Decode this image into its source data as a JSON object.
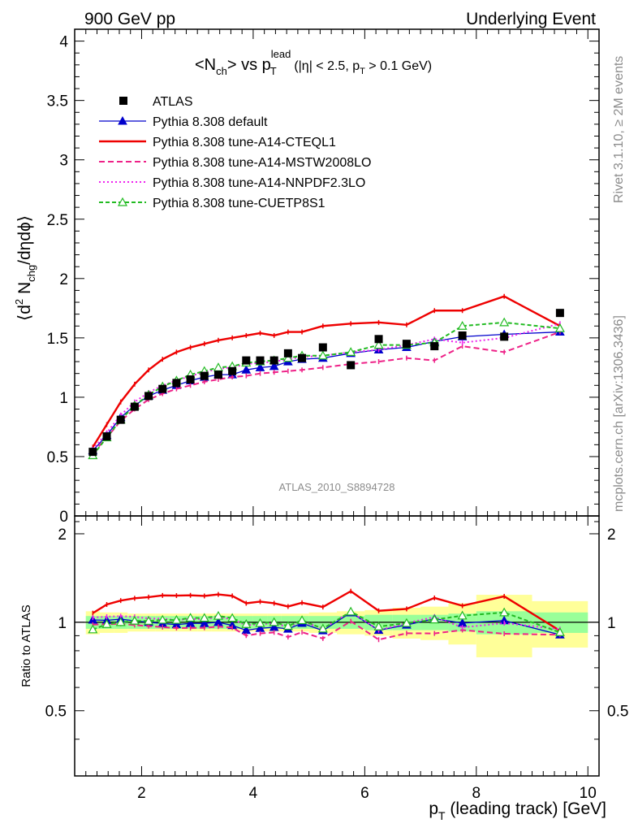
{
  "header": {
    "left": "900 GeV pp",
    "right": "Underlying Event"
  },
  "side_labels": {
    "top": "Rivet 3.1.10, ≥ 2M events",
    "bottom": "mcplots.cern.ch [arXiv:1306.3436]"
  },
  "analysis_id": "ATLAS_2010_S8894728",
  "chart_data": {
    "type": "scatter",
    "title": "<N_ch> vs p_T^lead (|η| < 2.5, p_T > 0.1 GeV)",
    "title_parts": {
      "a": "<N",
      "a_sub": "ch",
      "b": "> vs p",
      "b_sub": "T",
      "b_sup": "lead",
      "c": "(|η| < 2.5, p",
      "c_sub": "T",
      "d": " > 0.1 GeV)"
    },
    "xlabel": "p_T (leading track) [GeV]",
    "xlabel_parts": {
      "a": "p",
      "sub": "T",
      "b": " (leading track) [GeV]"
    },
    "ylabel": "⟨d² N_chg/dηdϕ⟩",
    "ylabel_parts": {
      "a": "⟨d",
      "sup": "2",
      "b": " N",
      "sub": "chg",
      "c": "/dηdϕ⟩"
    },
    "ratio_ylabel": "Ratio to ATLAS",
    "xlim": [
      0.8,
      10.2
    ],
    "ylim": [
      0,
      4.1
    ],
    "ratio_ylim": [
      0.3,
      2.3
    ],
    "x_ticks": [
      2,
      4,
      6,
      8,
      10
    ],
    "x_tick_labels": [
      "2",
      "4",
      "6",
      "8",
      "10"
    ],
    "y_ticks": [
      0,
      0.5,
      1,
      1.5,
      2,
      2.5,
      3,
      3.5,
      4
    ],
    "y_tick_labels": [
      "0",
      "0.5",
      "1",
      "1.5",
      "2",
      "2.5",
      "3",
      "3.5",
      "4"
    ],
    "ratio_y_ticks": [
      0.5,
      1,
      2
    ],
    "ratio_y_tick_labels": [
      "0.5",
      "1",
      "2"
    ],
    "legend_position": "top-left",
    "x": [
      1.125,
      1.375,
      1.625,
      1.875,
      2.125,
      2.375,
      2.625,
      2.875,
      3.125,
      3.375,
      3.625,
      3.875,
      4.125,
      4.375,
      4.625,
      4.875,
      5.25,
      5.75,
      6.25,
      6.75,
      7.25,
      7.75,
      8.5,
      9.5
    ],
    "x_bin_edges": [
      1.0,
      1.25,
      1.5,
      1.75,
      2.0,
      2.25,
      2.5,
      2.75,
      3.0,
      3.25,
      3.5,
      3.75,
      4.0,
      4.25,
      4.5,
      4.75,
      5.0,
      5.5,
      6.0,
      6.5,
      7.0,
      7.5,
      8.0,
      9.0,
      10.0
    ],
    "band_inner": [
      0.05,
      0.05,
      0.05,
      0.05,
      0.05,
      0.05,
      0.05,
      0.05,
      0.05,
      0.05,
      0.05,
      0.05,
      0.05,
      0.05,
      0.05,
      0.05,
      0.05,
      0.05,
      0.06,
      0.06,
      0.06,
      0.07,
      0.09,
      0.08
    ],
    "band_outer": [
      0.09,
      0.08,
      0.08,
      0.07,
      0.07,
      0.07,
      0.07,
      0.07,
      0.07,
      0.07,
      0.07,
      0.07,
      0.07,
      0.07,
      0.07,
      0.07,
      0.08,
      0.09,
      0.1,
      0.12,
      0.13,
      0.16,
      0.24,
      0.18
    ],
    "data": {
      "name": "ATLAS",
      "color": "#000000",
      "values": [
        0.54,
        0.67,
        0.81,
        0.92,
        1.01,
        1.07,
        1.12,
        1.15,
        1.18,
        1.19,
        1.22,
        1.31,
        1.31,
        1.31,
        1.37,
        1.33,
        1.42,
        1.27,
        1.49,
        1.45,
        1.43,
        1.52,
        1.51,
        1.71
      ]
    },
    "series": [
      {
        "name": "Pythia 8.308 default",
        "color": "#0000cc",
        "dash": "",
        "marker": "triangle-filled",
        "values": [
          0.55,
          0.68,
          0.83,
          0.93,
          1.01,
          1.06,
          1.1,
          1.14,
          1.17,
          1.19,
          1.19,
          1.23,
          1.25,
          1.26,
          1.3,
          1.32,
          1.33,
          1.37,
          1.4,
          1.42,
          1.47,
          1.51,
          1.53,
          1.55
        ]
      },
      {
        "name": "Pythia 8.308 tune-A14-CTEQL1",
        "color": "#ee0000",
        "dash": "",
        "marker": "none",
        "values": [
          0.58,
          0.77,
          0.96,
          1.11,
          1.23,
          1.32,
          1.38,
          1.42,
          1.45,
          1.48,
          1.5,
          1.52,
          1.54,
          1.52,
          1.55,
          1.55,
          1.6,
          1.62,
          1.63,
          1.61,
          1.73,
          1.73,
          1.85,
          1.6
        ]
      },
      {
        "name": "Pythia 8.308 tune-A14-MSTW2008LO",
        "color": "#ee2288",
        "dash": "7,4",
        "marker": "none",
        "values": [
          0.53,
          0.66,
          0.8,
          0.9,
          0.98,
          1.03,
          1.07,
          1.1,
          1.13,
          1.15,
          1.17,
          1.18,
          1.2,
          1.21,
          1.22,
          1.23,
          1.25,
          1.28,
          1.3,
          1.33,
          1.31,
          1.43,
          1.38,
          1.55
        ]
      },
      {
        "name": "Pythia 8.308 tune-A14-NNPDF2.3LO",
        "color": "#ee22ee",
        "dash": "2,3",
        "marker": "none",
        "values": [
          0.56,
          0.7,
          0.85,
          0.96,
          1.04,
          1.1,
          1.14,
          1.18,
          1.21,
          1.24,
          1.25,
          1.28,
          1.29,
          1.3,
          1.32,
          1.34,
          1.35,
          1.38,
          1.4,
          1.44,
          1.49,
          1.46,
          1.5,
          1.62
        ]
      },
      {
        "name": "Pythia 8.308 tune-CUETP8S1",
        "color": "#22bb22",
        "dash": "5,3",
        "marker": "triangle-open",
        "values": [
          0.51,
          0.66,
          0.81,
          0.93,
          1.02,
          1.09,
          1.14,
          1.19,
          1.22,
          1.25,
          1.26,
          1.29,
          1.3,
          1.31,
          1.33,
          1.35,
          1.35,
          1.38,
          1.44,
          1.44,
          1.46,
          1.6,
          1.63,
          1.58
        ]
      }
    ]
  }
}
